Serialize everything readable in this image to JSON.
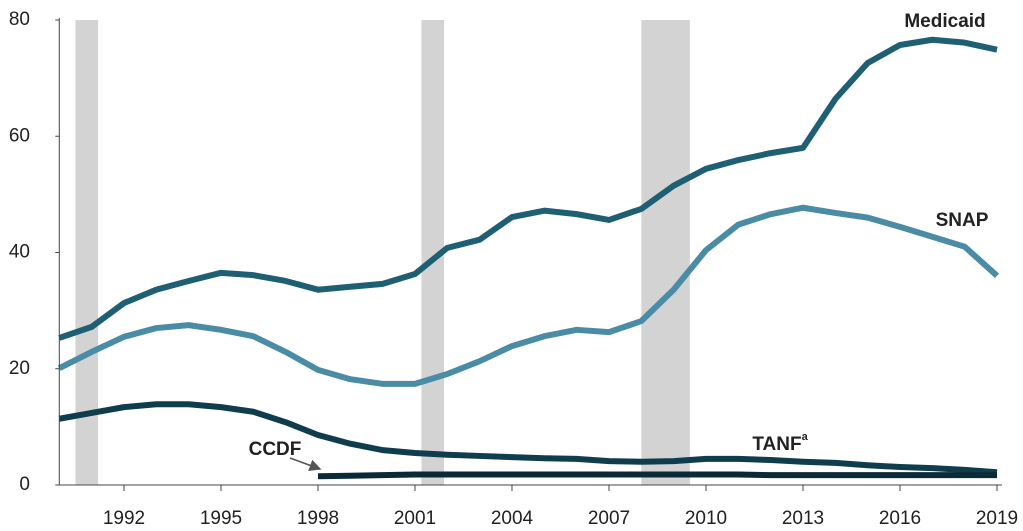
{
  "chart_data": {
    "type": "line",
    "x": [
      1990,
      1991,
      1992,
      1993,
      1994,
      1995,
      1996,
      1997,
      1998,
      1999,
      2000,
      2001,
      2002,
      2003,
      2004,
      2005,
      2006,
      2007,
      2008,
      2009,
      2010,
      2011,
      2012,
      2013,
      2014,
      2015,
      2016,
      2017,
      2018,
      2019
    ],
    "xlim": [
      1990,
      2019
    ],
    "xticks": [
      1992,
      1995,
      1998,
      2001,
      2004,
      2007,
      2010,
      2013,
      2016,
      2019
    ],
    "ylim": [
      0,
      80
    ],
    "yticks": [
      0,
      20,
      40,
      60,
      80
    ],
    "grid": false,
    "shaded_periods": [
      [
        1990.5,
        1991.2
      ],
      [
        2001.2,
        2001.9
      ],
      [
        2008,
        2009.5
      ]
    ],
    "shade_color": "#d3d3d3",
    "series": [
      {
        "name": "Medicaid",
        "color": "#1e5f74",
        "values": [
          25.3,
          27.2,
          31.3,
          33.6,
          35.1,
          36.5,
          36.1,
          35.1,
          33.6,
          34.1,
          34.6,
          36.3,
          40.8,
          42.2,
          46.1,
          47.2,
          46.6,
          45.6,
          47.5,
          51.5,
          54.4,
          55.9,
          57.1,
          58.0,
          66.4,
          72.6,
          75.7,
          76.6,
          76.1,
          74.9
        ]
      },
      {
        "name": "SNAP",
        "color": "#4a8ca5",
        "values": [
          20.1,
          22.9,
          25.5,
          27.0,
          27.5,
          26.7,
          25.6,
          22.9,
          19.8,
          18.2,
          17.4,
          17.4,
          19.1,
          21.3,
          23.9,
          25.6,
          26.7,
          26.3,
          28.2,
          33.6,
          40.4,
          44.8,
          46.6,
          47.7,
          46.8,
          46.0,
          44.4,
          42.7,
          41.0,
          36.0
        ]
      },
      {
        "name": "TANF",
        "note_marker": "a",
        "color": "#0f3d4d",
        "values": [
          11.4,
          12.4,
          13.4,
          13.9,
          13.9,
          13.4,
          12.6,
          10.8,
          8.6,
          7.1,
          6.0,
          5.5,
          5.2,
          5.0,
          4.8,
          4.6,
          4.5,
          4.1,
          4.0,
          4.1,
          4.5,
          4.5,
          4.3,
          4.0,
          3.8,
          3.4,
          3.1,
          2.9,
          2.6,
          2.2
        ]
      },
      {
        "name": "CCDF",
        "color": "#0b2a37",
        "values": [
          null,
          null,
          null,
          null,
          null,
          null,
          null,
          null,
          1.5,
          1.6,
          1.7,
          1.8,
          1.8,
          1.8,
          1.8,
          1.8,
          1.8,
          1.8,
          1.8,
          1.8,
          1.8,
          1.8,
          1.7,
          1.7,
          1.7,
          1.7,
          1.7,
          1.7,
          1.7,
          1.7
        ]
      }
    ]
  }
}
